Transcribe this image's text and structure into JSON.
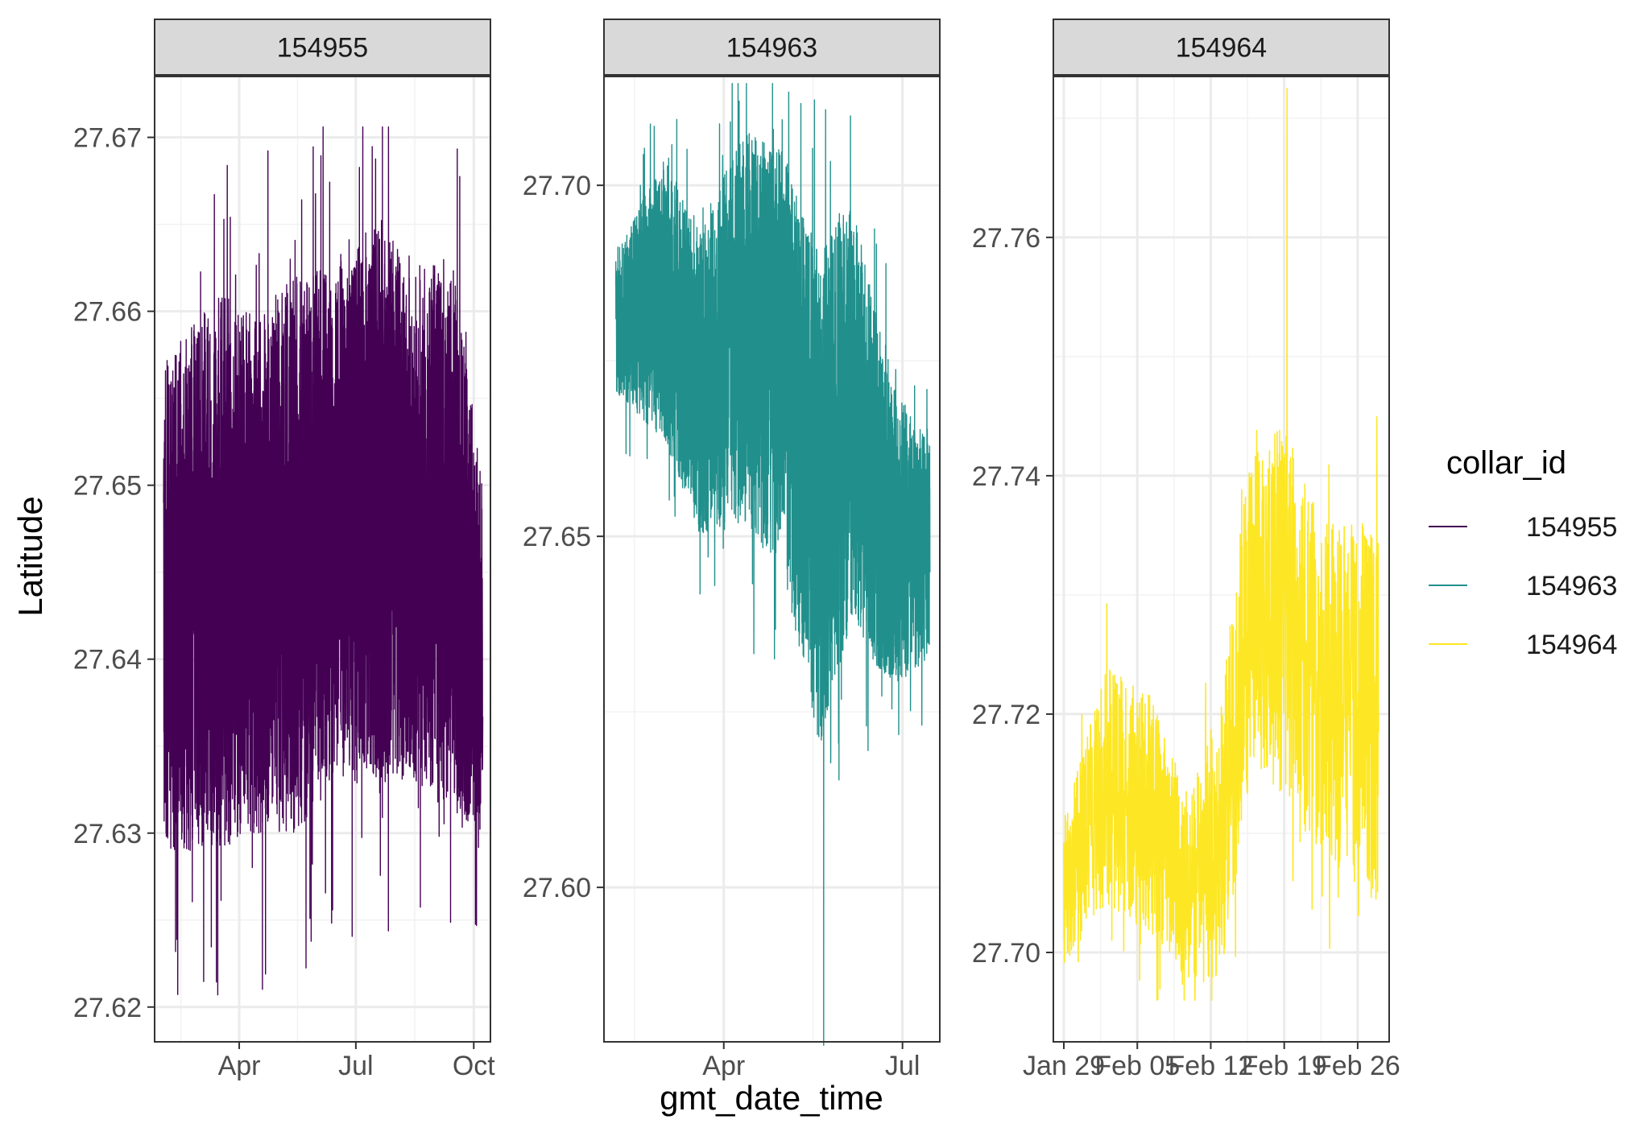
{
  "chart_data": {
    "type": "line",
    "xlabel": "gmt_date_time",
    "ylabel": "Latitude",
    "legend": {
      "title": "collar_id",
      "placement": "right",
      "entries": [
        "154955",
        "154963",
        "154964"
      ]
    },
    "grid": true,
    "colors": {
      "154955": "#440154",
      "154963": "#21908C",
      "154964": "#FDE725"
    },
    "panels": [
      {
        "strip": "154955",
        "series": "154955",
        "color": "#440154",
        "xlim": [
          "2023-01-25",
          "2023-10-14"
        ],
        "ylim": [
          27.618,
          27.6735
        ],
        "x_ticks": [
          "2023-04-01",
          "2023-07-01",
          "2023-10-01"
        ],
        "x_tick_labels": [
          "Apr",
          "Jul",
          "Oct"
        ],
        "y_ticks": [
          27.62,
          27.63,
          27.64,
          27.65,
          27.66,
          27.67
        ],
        "y_tick_labels": [
          "27.62",
          "27.63",
          "27.64",
          "27.65",
          "27.66",
          "27.67"
        ],
        "data_start": "2023-02-01",
        "data_end": "2023-10-08",
        "data_range": [
          27.6207,
          27.6706
        ],
        "level_profile": {
          "x": [
            "2023-02-01",
            "2023-03-15",
            "2023-04-15",
            "2023-05-15",
            "2023-06-15",
            "2023-07-15",
            "2023-08-15",
            "2023-09-15",
            "2023-10-08"
          ],
          "center": [
            27.643,
            27.645,
            27.645,
            27.646,
            27.648,
            27.649,
            27.648,
            27.647,
            27.64
          ],
          "spread": [
            0.014,
            0.016,
            0.015,
            0.016,
            0.015,
            0.016,
            0.015,
            0.016,
            0.01
          ]
        }
      },
      {
        "strip": "154963",
        "series": "154963",
        "color": "#21908C",
        "xlim": [
          "2023-01-30",
          "2023-07-20"
        ],
        "ylim": [
          27.578,
          27.7155
        ],
        "x_ticks": [
          "2023-04-01",
          "2023-07-01"
        ],
        "x_tick_labels": [
          "Apr",
          "Jul"
        ],
        "y_ticks": [
          27.6,
          27.65,
          27.7
        ],
        "y_tick_labels": [
          "27.60",
          "27.65",
          "27.70"
        ],
        "data_start": "2023-02-05",
        "data_end": "2023-07-15",
        "data_range": [
          27.5775,
          27.7145
        ],
        "level_profile": {
          "x": [
            "2023-02-05",
            "2023-03-01",
            "2023-03-20",
            "2023-04-10",
            "2023-05-01",
            "2023-05-20",
            "2023-06-05",
            "2023-06-25",
            "2023-07-15"
          ],
          "center": [
            27.68,
            27.684,
            27.672,
            27.68,
            27.675,
            27.655,
            27.668,
            27.65,
            27.648
          ],
          "spread": [
            0.01,
            0.02,
            0.022,
            0.028,
            0.03,
            0.035,
            0.03,
            0.022,
            0.015
          ]
        }
      },
      {
        "strip": "154964",
        "series": "154964",
        "color": "#FDE725",
        "xlim": [
          "2023-01-28",
          "2023-03-01"
        ],
        "ylim": [
          27.6925,
          27.7735
        ],
        "x_ticks": [
          "2023-01-29",
          "2023-02-05",
          "2023-02-12",
          "2023-02-19",
          "2023-02-26"
        ],
        "x_tick_labels": [
          "Jan 29",
          "Feb 05",
          "Feb 12",
          "Feb 19",
          "Feb 26"
        ],
        "y_ticks": [
          27.7,
          27.72,
          27.74,
          27.76
        ],
        "y_tick_labels": [
          "27.70",
          "27.72",
          "27.74",
          "27.76"
        ],
        "data_start": "2023-01-29",
        "data_end": "2023-02-28",
        "data_range": [
          27.696,
          27.7725
        ],
        "level_profile": {
          "x": [
            "2023-01-29",
            "2023-02-02",
            "2023-02-06",
            "2023-02-10",
            "2023-02-13",
            "2023-02-16",
            "2023-02-19",
            "2023-02-23",
            "2023-02-28"
          ],
          "center": [
            27.705,
            27.714,
            27.712,
            27.705,
            27.71,
            27.73,
            27.728,
            27.722,
            27.72
          ],
          "spread": [
            0.006,
            0.01,
            0.01,
            0.008,
            0.012,
            0.014,
            0.016,
            0.014,
            0.016
          ]
        }
      }
    ]
  }
}
